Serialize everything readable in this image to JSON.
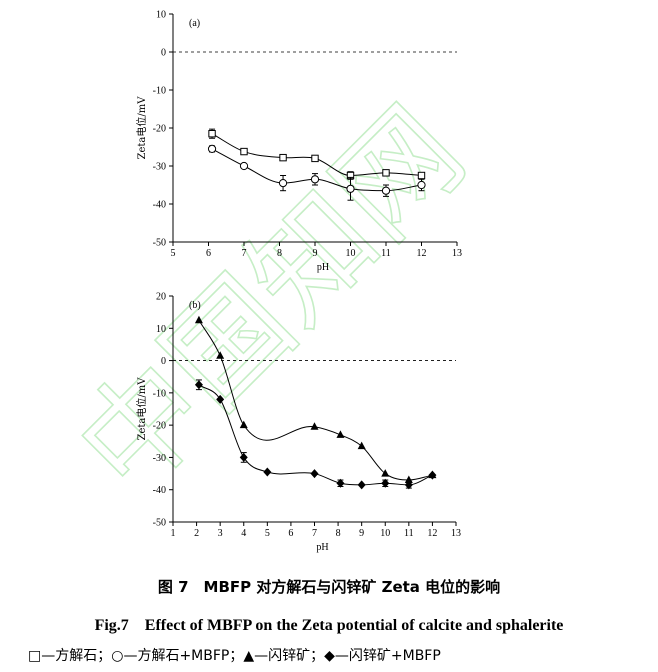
{
  "watermark_text": "中国知网",
  "caption_zh": "图 7　MBFP 对方解石与闪锌矿 Zeta 电位的影响",
  "caption_en": "Fig.7　Effect of MBFP on the Zeta potential of calcite and sphalerite",
  "legend_caption": "□—方解石；○—方解石+MBFP；▲—闪锌矿；◆—闪锌矿+MBFP",
  "chart_data": [
    {
      "type": "scatter",
      "panel_label": "(a)",
      "xlabel": "pH",
      "ylabel": "Zeta电位/mV",
      "xlim": [
        5,
        13
      ],
      "ylim": [
        -50,
        10
      ],
      "xticks": [
        5,
        6,
        7,
        8,
        9,
        10,
        11,
        12,
        13
      ],
      "yticks": [
        10,
        0,
        -10,
        -20,
        -30,
        -40,
        -50
      ],
      "reference_line": 0,
      "grid": false,
      "series": [
        {
          "marker": "square-open",
          "x": [
            6.1,
            7,
            8.1,
            9,
            10,
            11,
            12
          ],
          "y": [
            -21.5,
            -26.2,
            -27.8,
            -28,
            -32.5,
            -31.8,
            -32.5
          ],
          "err": [
            1.2,
            0,
            0,
            0.5,
            1,
            0,
            0
          ]
        },
        {
          "marker": "circle-open",
          "x": [
            6.1,
            7,
            8.1,
            9,
            10,
            11,
            12
          ],
          "y": [
            -25.5,
            -30,
            -34.5,
            -33.5,
            -36,
            -36.5,
            -35
          ],
          "err": [
            0.8,
            0.5,
            2,
            1.5,
            3,
            1.5,
            1.5
          ]
        }
      ]
    },
    {
      "type": "scatter",
      "panel_label": "(b)",
      "xlabel": "pH",
      "ylabel": "Zeta电位/mV",
      "xlim": [
        1,
        13
      ],
      "ylim": [
        -50,
        20
      ],
      "xticks": [
        1,
        2,
        3,
        4,
        5,
        6,
        7,
        8,
        9,
        10,
        11,
        12,
        13
      ],
      "yticks": [
        20,
        10,
        0,
        -10,
        -20,
        -30,
        -40,
        -50
      ],
      "reference_line": 0,
      "grid": false,
      "series": [
        {
          "marker": "triangle-filled",
          "x": [
            2.1,
            3,
            4,
            7,
            8.1,
            9,
            10,
            11,
            12
          ],
          "y": [
            12.5,
            1.5,
            -20,
            -20.5,
            -23,
            -26.5,
            -35,
            -37,
            -35.5
          ],
          "err": [
            0,
            0,
            0,
            0,
            0,
            0,
            0,
            0,
            0
          ]
        },
        {
          "marker": "diamond-filled",
          "x": [
            2.1,
            3,
            4,
            5,
            7,
            8.1,
            9,
            10,
            11,
            12
          ],
          "y": [
            -7.5,
            -12,
            -30,
            -34.5,
            -35,
            -38,
            -38.5,
            -38,
            -38.5,
            -35.5
          ],
          "err": [
            1.5,
            0,
            1.5,
            0,
            0,
            1,
            0,
            1,
            1,
            0
          ]
        }
      ]
    }
  ]
}
